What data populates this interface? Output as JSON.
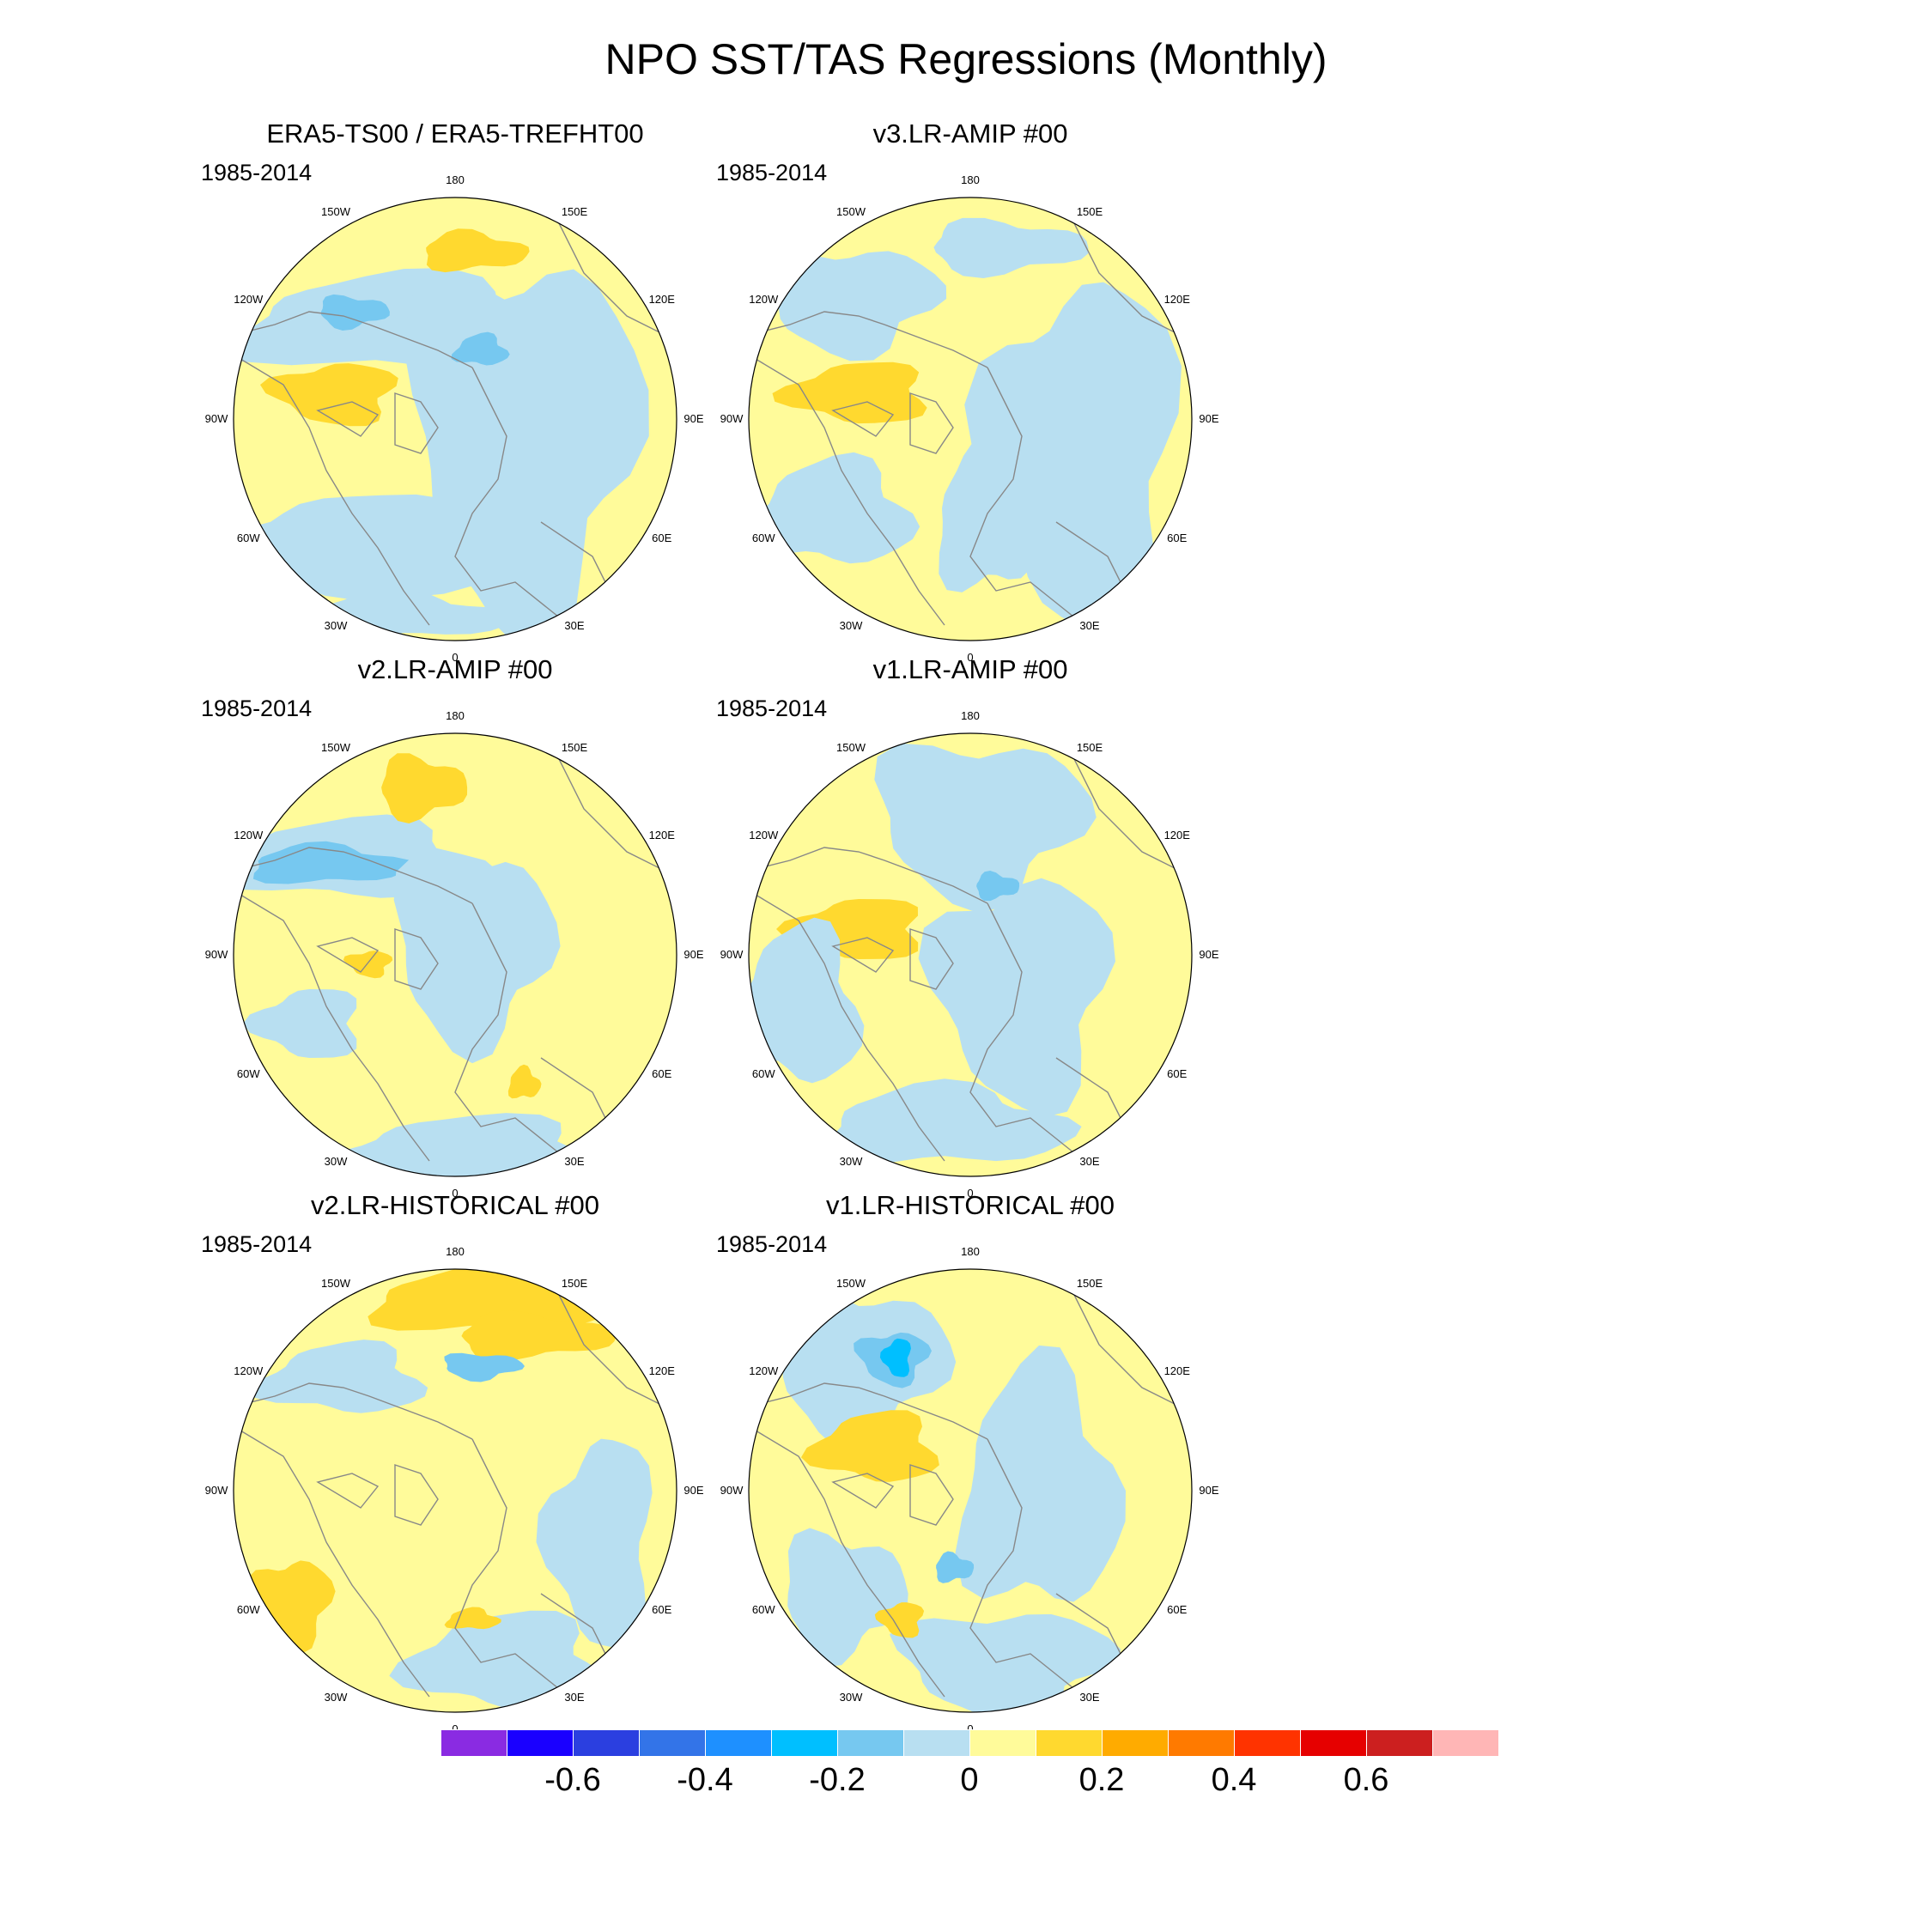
{
  "title": "NPO SST/TAS Regressions (Monthly)",
  "panels": [
    {
      "title": "ERA5-TS00 / ERA5-TREFHT00",
      "period": "1985-2014"
    },
    {
      "title": "v3.LR-AMIP  #00",
      "period": "1985-2014"
    },
    {
      "title": "v2.LR-AMIP  #00",
      "period": "1985-2014"
    },
    {
      "title": "v1.LR-AMIP  #00",
      "period": "1985-2014"
    },
    {
      "title": "v2.LR-HISTORICAL  #00",
      "period": "1985-2014"
    },
    {
      "title": "v1.LR-HISTORICAL  #00",
      "period": "1985-2014"
    }
  ],
  "longitude_labels": [
    "180",
    "150E",
    "120E",
    "90E",
    "60E",
    "30E",
    "0",
    "30W",
    "60W",
    "90W",
    "120W",
    "150W"
  ],
  "colorbar": {
    "colors": [
      "#8a2be2",
      "#1a00ff",
      "#2b3fe0",
      "#3374e8",
      "#1e90ff",
      "#00bfff",
      "#76c8f0",
      "#b8dff1",
      "#fffb9a",
      "#ffd92f",
      "#ffab00",
      "#ff7a00",
      "#ff3300",
      "#e60000",
      "#cc1f1f",
      "#ffb6b6"
    ],
    "tick_labels": [
      "-0.6",
      "-0.4",
      "-0.2",
      "0",
      "0.2",
      "0.4",
      "0.6"
    ]
  },
  "colors": {
    "light_blue": "#b8dff1",
    "mid_blue": "#76c8f0",
    "deep_blue": "#00bfff",
    "light_yellow": "#fffb9a",
    "gold": "#ffd92f",
    "orange": "#ffab00",
    "coast": "#888888"
  }
}
